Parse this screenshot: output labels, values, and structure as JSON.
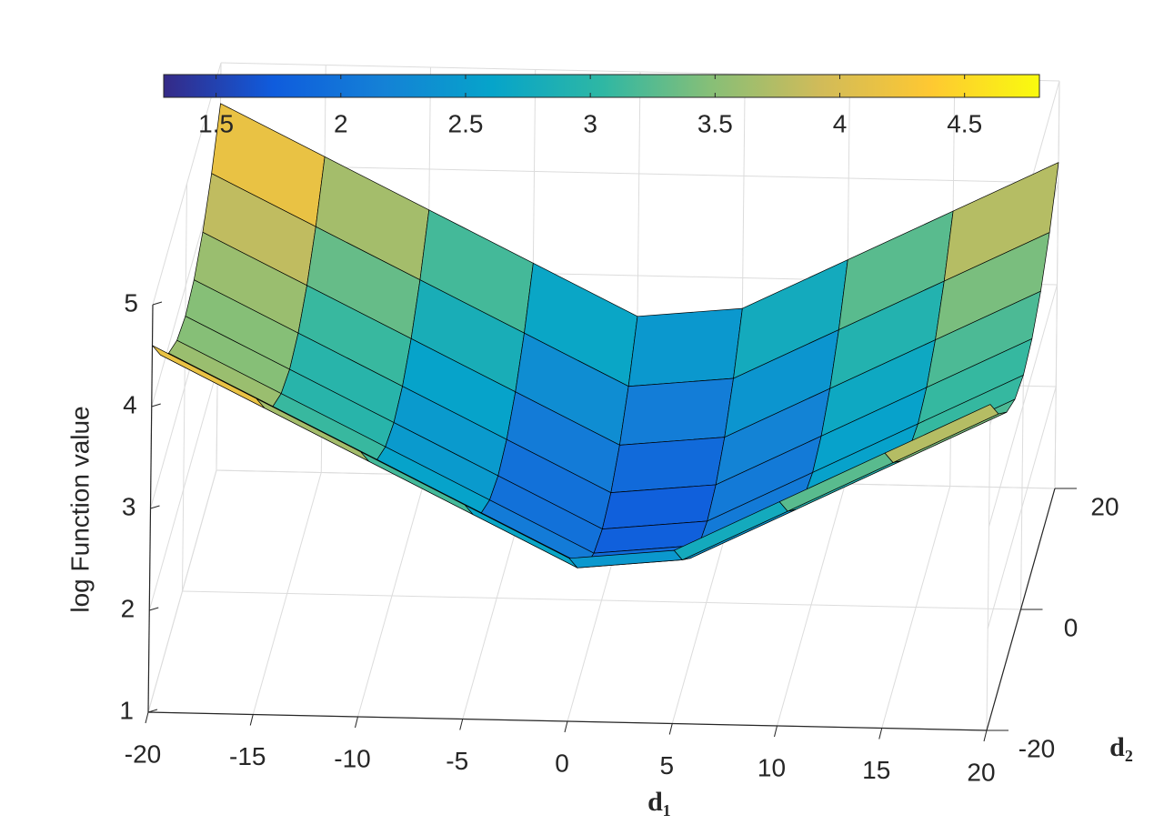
{
  "chart_data": {
    "type": "surface",
    "xlabel": "d₁",
    "ylabel": "d₂",
    "zlabel": "log Function value",
    "x": [
      -20,
      -15,
      -10,
      -5,
      0,
      5,
      10,
      15,
      20
    ],
    "y": [
      -20,
      -15,
      -10,
      -5,
      0,
      5,
      10,
      15,
      20
    ],
    "z": [
      [
        4.6,
        4.1,
        3.6,
        3.1,
        2.6,
        2.7,
        3.2,
        3.7,
        4.2
      ],
      [
        4.21,
        3.71,
        3.21,
        2.71,
        2.21,
        2.31,
        2.81,
        3.31,
        3.81
      ],
      [
        3.93,
        3.43,
        2.93,
        2.43,
        1.93,
        2.03,
        2.53,
        3.03,
        3.53
      ],
      [
        3.76,
        3.26,
        2.76,
        2.26,
        1.76,
        1.86,
        2.36,
        2.86,
        3.36
      ],
      [
        3.7,
        3.2,
        2.7,
        2.2,
        1.7,
        1.8,
        2.3,
        2.8,
        3.3
      ],
      [
        3.76,
        3.26,
        2.76,
        2.26,
        1.76,
        1.86,
        2.36,
        2.86,
        3.36
      ],
      [
        3.93,
        3.43,
        2.93,
        2.43,
        1.93,
        2.03,
        2.53,
        3.03,
        3.53
      ],
      [
        4.21,
        3.71,
        3.21,
        2.71,
        2.21,
        2.31,
        2.81,
        3.31,
        3.81
      ],
      [
        4.6,
        4.1,
        3.6,
        3.1,
        2.6,
        2.7,
        3.2,
        3.7,
        4.2
      ]
    ],
    "xlim": [
      -20,
      20
    ],
    "ylim": [
      -20,
      20
    ],
    "zlim": [
      1,
      5
    ],
    "xticks": [
      -20,
      -15,
      -10,
      -5,
      0,
      5,
      10,
      15,
      20
    ],
    "yticks": [
      -20,
      0,
      20
    ],
    "zticks": [
      1,
      2,
      3,
      4,
      5
    ],
    "colormap": "parula",
    "clim": [
      1.29,
      4.8
    ],
    "cticks": [
      1.5,
      2,
      2.5,
      3,
      3.5,
      4,
      4.5
    ],
    "colorbar": "north",
    "grid": true
  }
}
